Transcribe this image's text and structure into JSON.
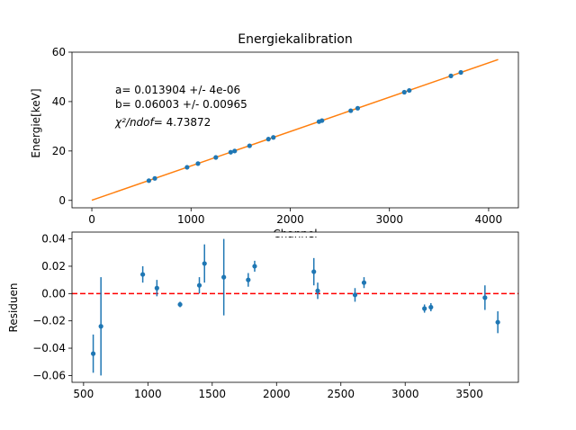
{
  "chart_data": [
    {
      "type": "scatter",
      "title": "Energiekalibration",
      "xlabel": "Channel",
      "ylabel": "Energie[keV]",
      "xlim": [
        -200,
        4300
      ],
      "ylim": [
        -3,
        60
      ],
      "xticks": [
        0,
        1000,
        2000,
        3000,
        4000
      ],
      "yticks": [
        0,
        20,
        40,
        60
      ],
      "grid": false,
      "point_color": "#1f77b4",
      "line_color": "#ff7f0e",
      "fit_line": {
        "x": [
          0,
          4096
        ],
        "y": [
          0.06,
          57.01
        ]
      },
      "annotations": [
        "a= 0.013904 +/- 4e-06",
        "b= 0.06003 +/- 0.00965",
        "= 4.73872"
      ],
      "annotation_prefix": "χ²/ndof",
      "series": [
        {
          "x": [
            575,
            635,
            960,
            1070,
            1250,
            1400,
            1440,
            1590,
            1780,
            1830,
            2290,
            2320,
            2610,
            2680,
            3150,
            3200,
            3620,
            3720
          ],
          "y": [
            8.0,
            8.9,
            13.4,
            14.9,
            17.4,
            19.5,
            20.0,
            22.1,
            24.8,
            25.5,
            31.9,
            32.3,
            36.3,
            37.3,
            43.8,
            44.5,
            50.4,
            51.8
          ]
        }
      ]
    },
    {
      "type": "scatter",
      "title": "",
      "xlabel": "",
      "ylabel": "Residuen",
      "xlim": [
        410,
        3880
      ],
      "ylim": [
        -0.065,
        0.045
      ],
      "xticks": [
        500,
        1000,
        1500,
        2000,
        2500,
        3000,
        3500
      ],
      "yticks": [
        -0.06,
        -0.04,
        -0.02,
        0.0,
        0.02,
        0.04
      ],
      "ytick_labels": [
        "−0.06",
        "−0.04",
        "−0.02",
        "0.00",
        "0.02",
        "0.04"
      ],
      "grid": false,
      "point_color": "#1f77b4",
      "reference_line": {
        "y": 0,
        "color": "#ff0000",
        "style": "dashed"
      },
      "series": [
        {
          "x": [
            575,
            635,
            960,
            1070,
            1250,
            1400,
            1440,
            1590,
            1780,
            1830,
            2290,
            2320,
            2610,
            2680,
            3150,
            3200,
            3620,
            3720
          ],
          "y": [
            -0.044,
            -0.024,
            0.014,
            0.004,
            -0.008,
            0.006,
            0.022,
            0.012,
            0.01,
            0.02,
            0.016,
            0.002,
            -0.001,
            0.008,
            -0.011,
            -0.01,
            -0.003,
            -0.021
          ],
          "yerr": [
            0.014,
            0.036,
            0.006,
            0.006,
            0.002,
            0.006,
            0.014,
            0.028,
            0.005,
            0.004,
            0.01,
            0.006,
            0.005,
            0.004,
            0.003,
            0.003,
            0.009,
            0.008
          ]
        }
      ]
    }
  ]
}
